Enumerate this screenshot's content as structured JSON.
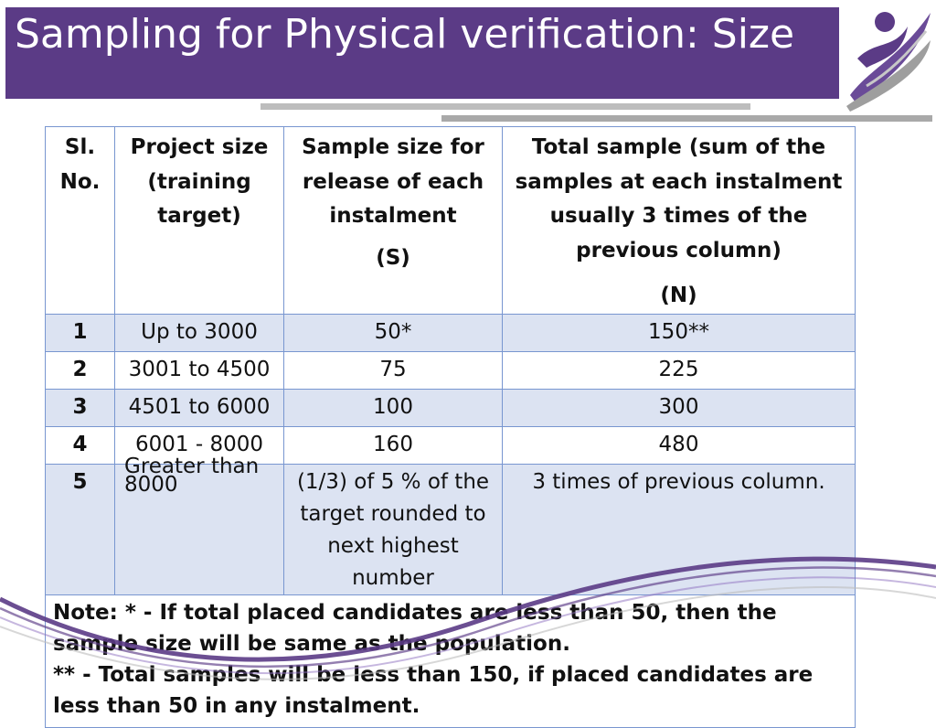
{
  "slide": {
    "title": "Sampling for Physical verification: Size"
  },
  "table": {
    "headers": {
      "sl_no": "Sl. No.",
      "project_size": "Project size (training target)",
      "sample_size": "Sample size for release of each instalment",
      "sample_symbol": "(S)",
      "total_sample": "Total sample (sum of the samples at each instalment usually 3 times of the previous column)",
      "total_symbol": "(N)"
    },
    "rows": [
      {
        "sl": "1",
        "project_size": "Up to 3000",
        "sample": "50*",
        "total": "150**"
      },
      {
        "sl": "2",
        "project_size": "3001 to 4500",
        "sample": "75",
        "total": "225"
      },
      {
        "sl": "3",
        "project_size": "4501 to 6000",
        "sample": "100",
        "total": "300"
      },
      {
        "sl": "4",
        "project_size": "6001 - 8000",
        "sample": "160",
        "total": "480"
      },
      {
        "sl": "5",
        "project_size": "Greater  than 8000",
        "sample": "(1/3) of 5 % of the target rounded to next highest number",
        "total": "3 times of previous column."
      }
    ],
    "note_line1": "Note: * - If total placed candidates are less than 50, then the sample size will be same as the population.",
    "note_line2": "** - Total samples will be less than 150, if placed candidates are less than 50 in any instalment."
  },
  "colors": {
    "title_bg": "#5b3b86",
    "table_border": "#7896d0",
    "band_fill": "#dce3f2"
  }
}
